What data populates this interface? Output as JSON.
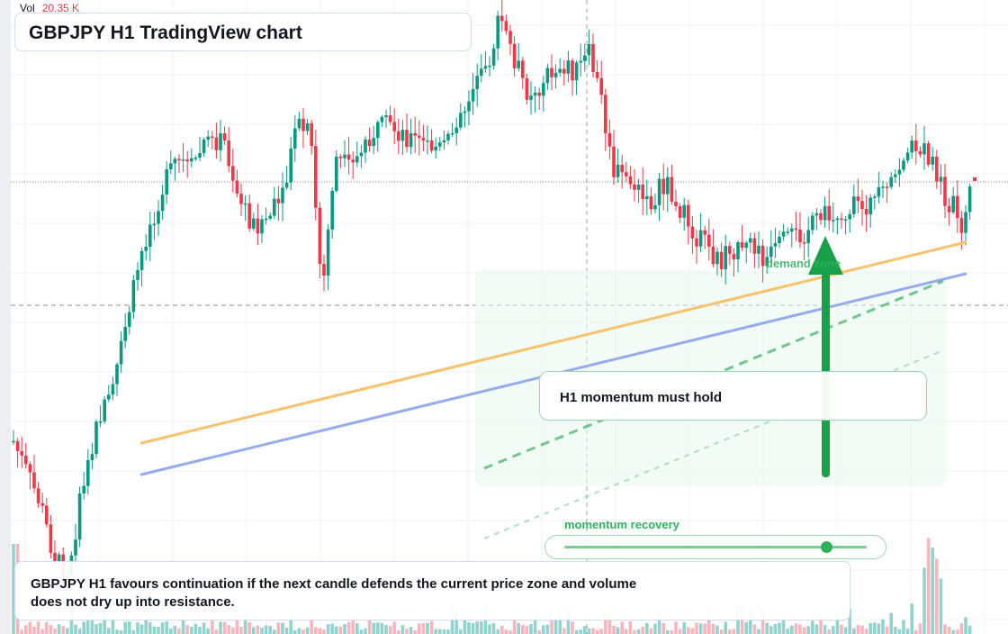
{
  "header": {
    "vol_label": "Vol",
    "vol_value": "20.35 K",
    "title": "GBPJPY H1 TradingView chart"
  },
  "annotations": {
    "callout": "H1 momentum must hold",
    "zone_label": "demand zone",
    "recovery_label": "momentum recovery",
    "recovery_level": 0.86,
    "summary": "GBPJPY H1 favours continuation if the next candle defends the current price zone and volume does not dry up into resistance."
  },
  "colors": {
    "up": "#089981",
    "down": "#f23645",
    "volume_up": "#80cbc4",
    "volume_down": "#f7a8b0",
    "trend_orange": "#f7c26b",
    "trend_blue": "#94acee",
    "signal_green": "#17a24a",
    "grid": "#eef0f3"
  },
  "icons": {
    "momentum_arrow": "arrow-up-icon"
  }
}
